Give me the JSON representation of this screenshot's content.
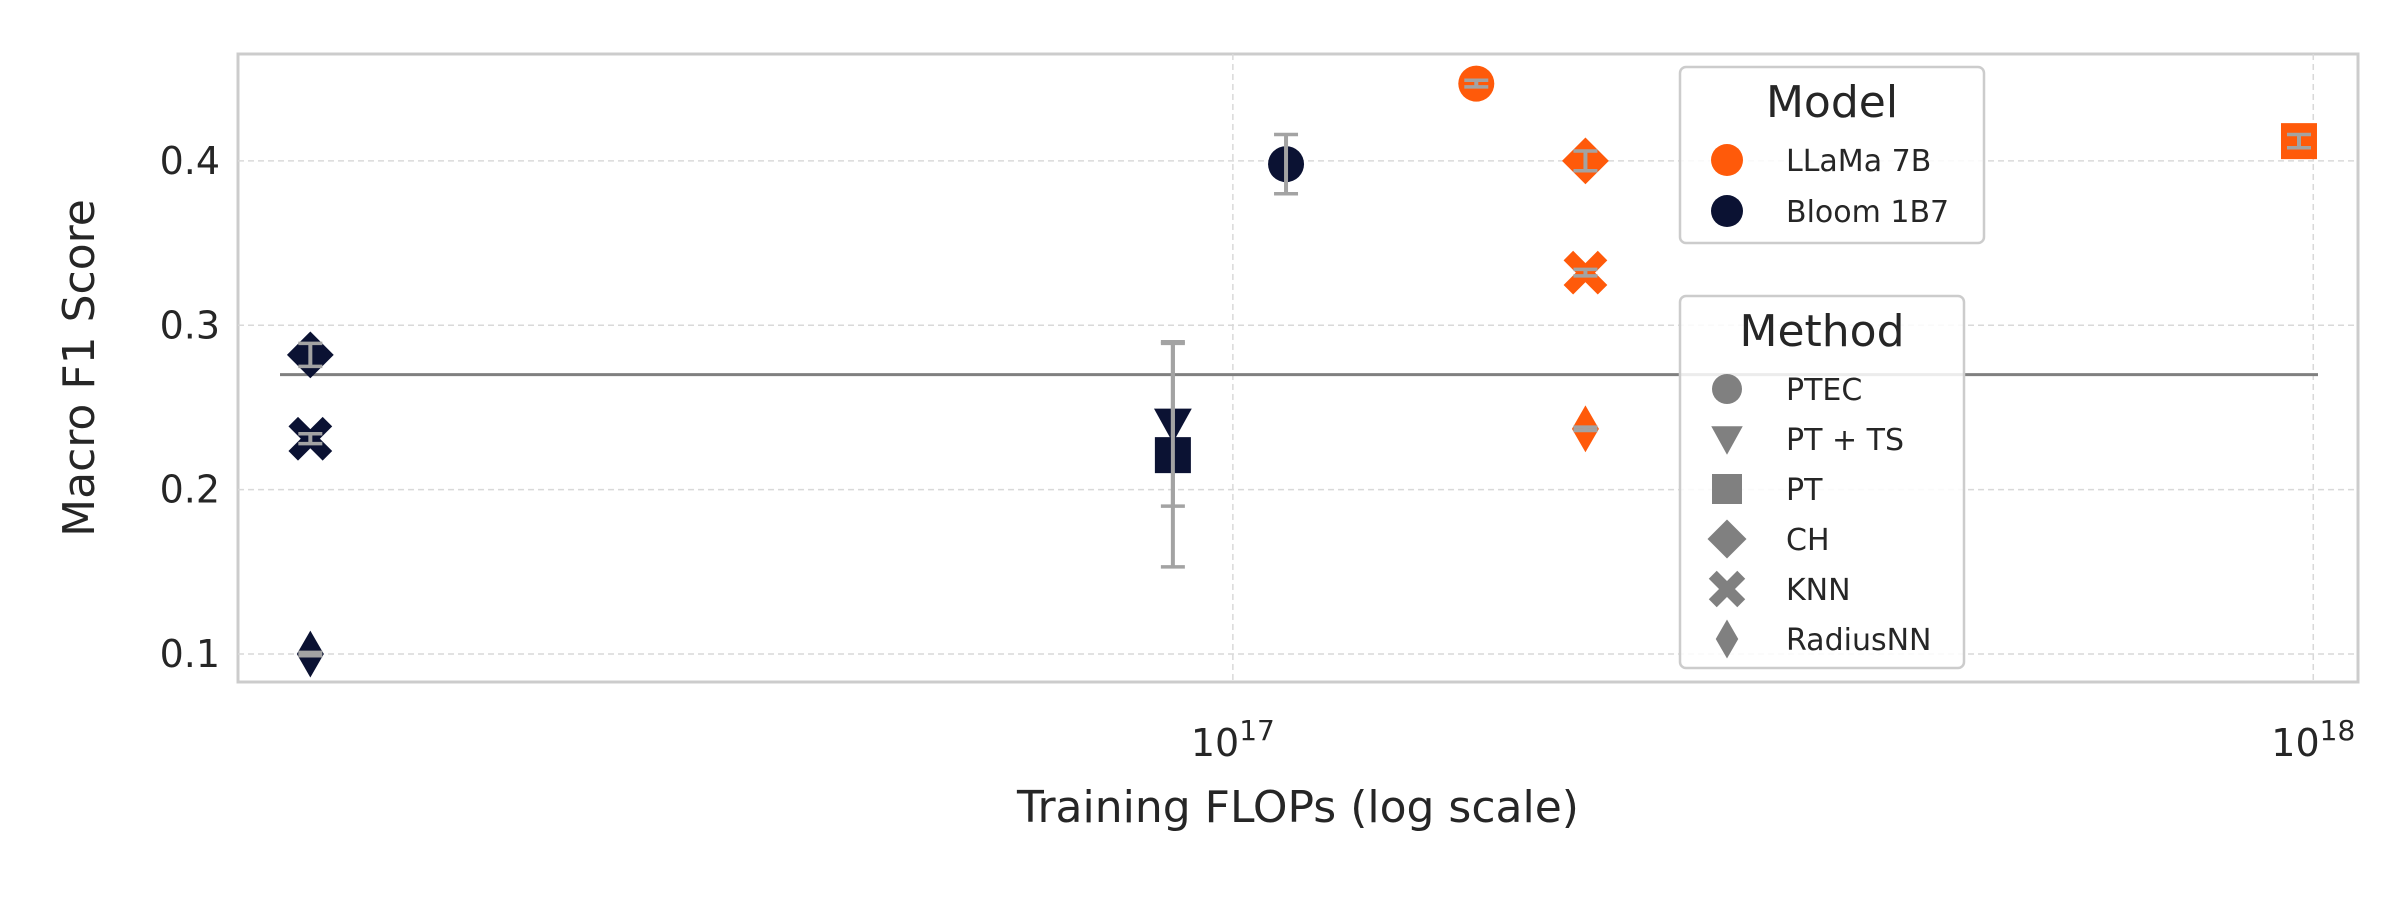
{
  "chart_data": {
    "type": "scatter",
    "xlabel": "Training FLOPs (log scale)",
    "ylabel": "Macro F1 Score",
    "x_scale": "log",
    "xlim": [
      1.2e+16,
      1.1e+18
    ],
    "ylim": [
      0.083,
      0.465
    ],
    "grid": true,
    "x_ticks": [
      {
        "value": 1e+17,
        "base": "10",
        "exp": "17"
      },
      {
        "value": 1e+18,
        "base": "10",
        "exp": "18"
      }
    ],
    "y_ticks": [
      {
        "value": 0.1,
        "label": "0.1"
      },
      {
        "value": 0.2,
        "label": "0.2"
      },
      {
        "value": 0.3,
        "label": "0.3"
      },
      {
        "value": 0.4,
        "label": "0.4"
      }
    ],
    "baseline": 0.27,
    "colors": {
      "llama": "#ff5a0a",
      "bloom": "#0b1233",
      "errorbar": "#a3a3a3",
      "baseline": "#808080",
      "legend_marker": "#808080"
    },
    "model_legend": {
      "title": "Model",
      "position": "upper-right",
      "entries": [
        {
          "label": "LLaMa 7B",
          "color": "#ff5a0a"
        },
        {
          "label": "Bloom 1B7",
          "color": "#0b1233"
        }
      ]
    },
    "method_legend": {
      "title": "Method",
      "position": "center-right",
      "entries": [
        {
          "label": "PTEC",
          "marker": "circle"
        },
        {
          "label": "PT + TS",
          "marker": "triangle-down"
        },
        {
          "label": "PT",
          "marker": "square"
        },
        {
          "label": "CH",
          "marker": "diamond"
        },
        {
          "label": "KNN",
          "marker": "x"
        },
        {
          "label": "RadiusNN",
          "marker": "thin-diamond"
        }
      ]
    },
    "points": [
      {
        "model": "Bloom 1B7",
        "method": "CH",
        "x": 1.4e+16,
        "y": 0.282,
        "err": 0.007
      },
      {
        "model": "Bloom 1B7",
        "method": "KNN",
        "x": 1.4e+16,
        "y": 0.231,
        "err": 0.003
      },
      {
        "model": "Bloom 1B7",
        "method": "RadiusNN",
        "x": 1.4e+16,
        "y": 0.1,
        "err": 0.001
      },
      {
        "model": "Bloom 1B7",
        "method": "PT + TS",
        "x": 8.8e+16,
        "y": 0.24,
        "err": 0.05
      },
      {
        "model": "Bloom 1B7",
        "method": "PT",
        "x": 8.8e+16,
        "y": 0.221,
        "err": 0.068
      },
      {
        "model": "Bloom 1B7",
        "method": "PTEC",
        "x": 1.12e+17,
        "y": 0.398,
        "err": 0.018
      },
      {
        "model": "LLaMa 7B",
        "method": "PTEC",
        "x": 1.68e+17,
        "y": 0.447,
        "err": 0.002
      },
      {
        "model": "LLaMa 7B",
        "method": "CH",
        "x": 2.12e+17,
        "y": 0.4,
        "err": 0.006
      },
      {
        "model": "LLaMa 7B",
        "method": "KNN",
        "x": 2.12e+17,
        "y": 0.332,
        "err": 0.002
      },
      {
        "model": "LLaMa 7B",
        "method": "RadiusNN",
        "x": 2.12e+17,
        "y": 0.237,
        "err": 0.001
      },
      {
        "model": "LLaMa 7B",
        "method": "PT",
        "x": 9.7e+17,
        "y": 0.412,
        "err": 0.004
      }
    ]
  }
}
